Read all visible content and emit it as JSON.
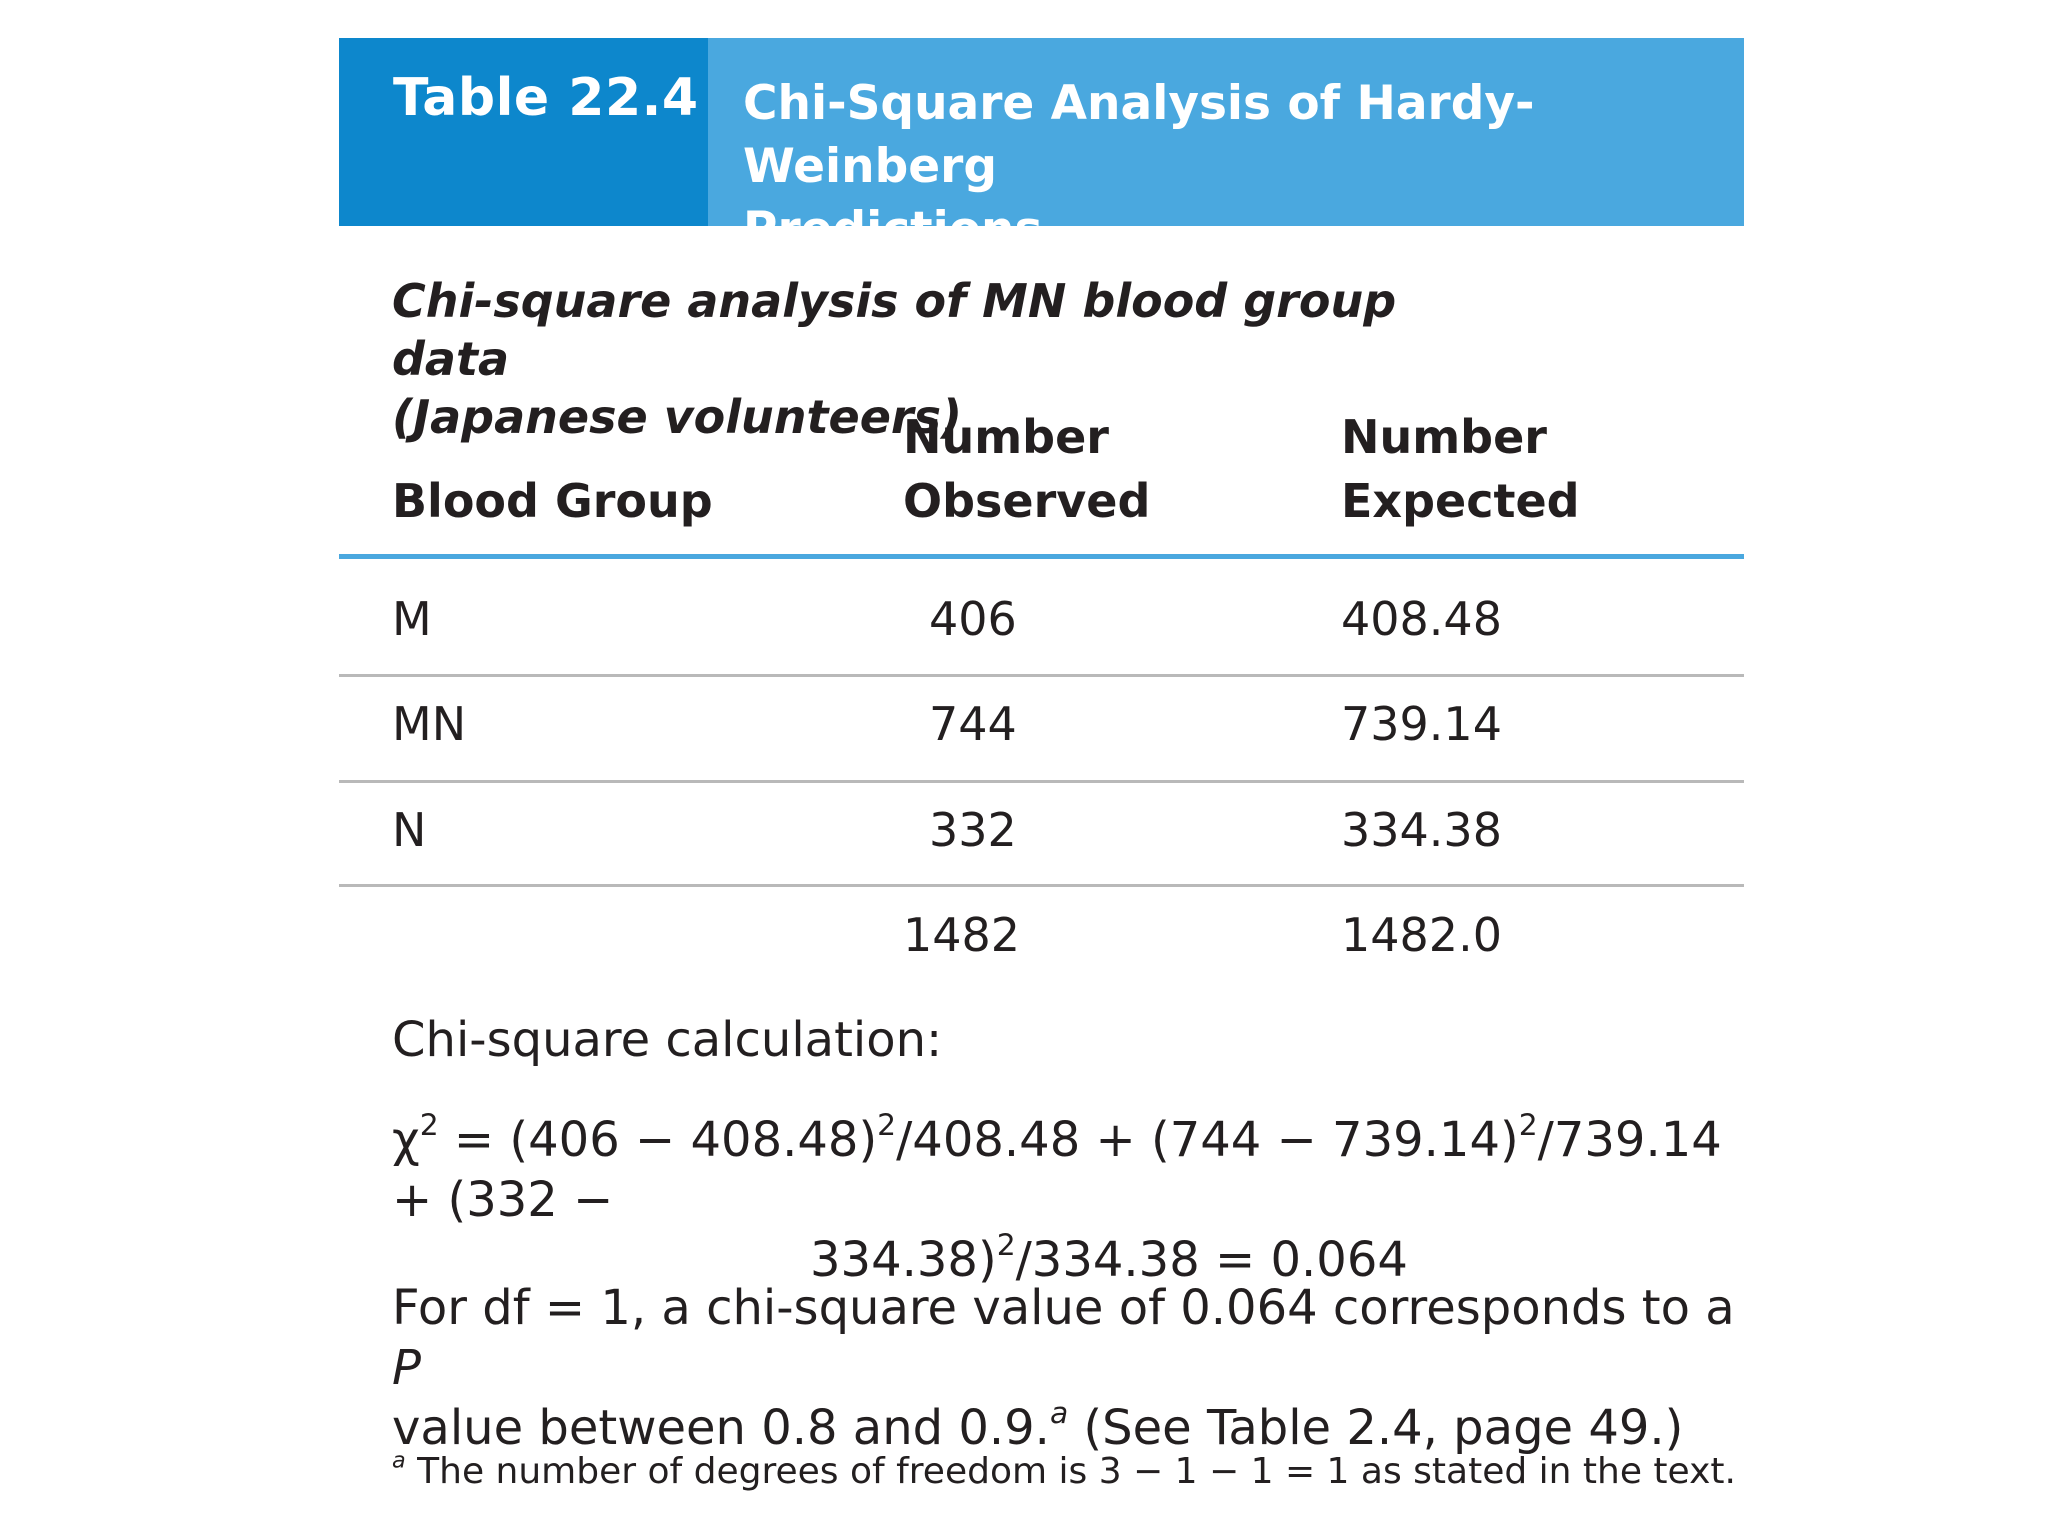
{
  "header": {
    "label": "Table 22.4",
    "title_line1": "Chi-Square Analysis of Hardy-Weinberg",
    "title_line2": "Predictions"
  },
  "subtitle": {
    "line1": "Chi-square analysis of MN blood group data",
    "line2": "(Japanese volunteers)"
  },
  "table": {
    "columns": {
      "group": "Blood Group",
      "observed_line1": "Number",
      "observed_line2": "Observed",
      "expected_line1": "Number",
      "expected_line2": "Expected"
    },
    "rows": [
      {
        "group": "M",
        "observed": "406",
        "expected": "408.48"
      },
      {
        "group": "MN",
        "observed": "744",
        "expected": "739.14"
      },
      {
        "group": "N",
        "observed": "332",
        "expected": "334.38"
      }
    ],
    "totals": {
      "observed": "1482",
      "expected": "1482.0"
    }
  },
  "calculation": {
    "label": "Chi-square calculation:",
    "chi": "χ",
    "exp2": "2",
    "f1": " = (406 − 408.48)",
    "f2": "/408.48 + (744 − 739.14)",
    "f3": "/739.14 + (332 −",
    "f4": "334.38)",
    "f5": "/334.38 = 0.064"
  },
  "conclusion": {
    "part1": "For df = 1, a chi-square value of 0.064 corresponds to a ",
    "p": "P",
    "part2": "value between 0.8 and 0.9.",
    "note_mark": "a",
    "part3": " (See Table 2.4, page 49.)"
  },
  "footnote": {
    "mark": "a",
    "text": " The number of degrees of freedom is 3 − 1 − 1 = 1 as stated in the text."
  }
}
